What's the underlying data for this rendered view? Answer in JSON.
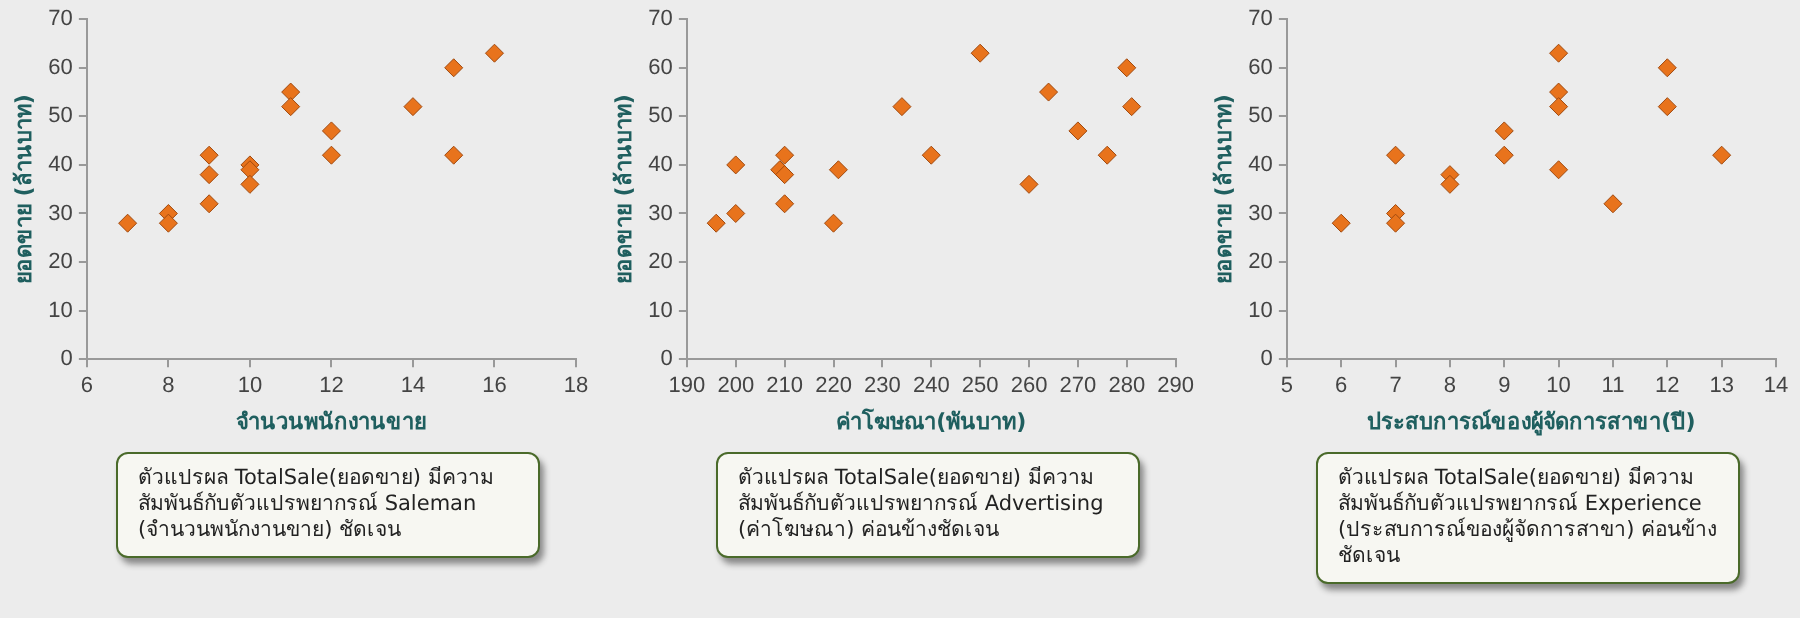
{
  "chart_data": [
    {
      "type": "scatter",
      "xlabel": "จำนวนพนักงานขาย",
      "ylabel": "ยอดขาย (ล้านบาท)",
      "marker": "diamond",
      "grid": false,
      "xlim": [
        6,
        18
      ],
      "xticks": [
        6,
        8,
        10,
        12,
        14,
        16,
        18
      ],
      "ylim": [
        0,
        70
      ],
      "yticks": [
        0,
        10,
        20,
        30,
        40,
        50,
        60,
        70
      ],
      "series": [
        {
          "color": "#e8731c",
          "x": [
            7,
            8,
            8,
            9,
            9,
            9,
            10,
            10,
            10,
            11,
            11,
            12,
            12,
            14,
            15,
            15,
            16
          ],
          "values": [
            28,
            30,
            28,
            42,
            38,
            32,
            40,
            39,
            36,
            55,
            52,
            47,
            42,
            52,
            60,
            42,
            63
          ]
        }
      ],
      "annotations": [
        "ตัวแปรผล TotalSale(ยอดขาย) มีความสัมพันธ์กับตัวแปรพยากรณ์ Saleman (จำนวนพนักงานขาย) ชัดเจน"
      ]
    },
    {
      "type": "scatter",
      "xlabel": "ค่าโฆษณา(พันบาท)",
      "ylabel": "ยอดขาย (ล้านบาท)",
      "marker": "diamond",
      "grid": false,
      "xlim": [
        190,
        290
      ],
      "xticks": [
        190,
        200,
        210,
        220,
        230,
        240,
        250,
        260,
        270,
        280,
        290
      ],
      "ylim": [
        0,
        70
      ],
      "yticks": [
        0,
        10,
        20,
        30,
        40,
        50,
        60,
        70
      ],
      "series": [
        {
          "color": "#e8731c",
          "x": [
            196,
            200,
            200,
            209,
            210,
            210,
            210,
            220,
            221,
            234,
            240,
            250,
            260,
            264,
            270,
            276,
            280,
            281
          ],
          "values": [
            28,
            40,
            30,
            39,
            42,
            38,
            32,
            28,
            39,
            52,
            42,
            63,
            36,
            55,
            47,
            42,
            60,
            52
          ]
        }
      ],
      "annotations": [
        "ตัวแปรผล TotalSale(ยอดขาย) มีความสัมพันธ์กับตัวแปรพยากรณ์ Advertising (ค่าโฆษณา) ค่อนข้างชัดเจน"
      ]
    },
    {
      "type": "scatter",
      "xlabel": "ประสบการณ์ของผู้จัดการสาขา(ปี)",
      "ylabel": "ยอดขาย (ล้านบาท)",
      "marker": "diamond",
      "grid": false,
      "xlim": [
        5,
        14
      ],
      "xticks": [
        5,
        6,
        7,
        8,
        9,
        10,
        11,
        12,
        13,
        14
      ],
      "ylim": [
        0,
        70
      ],
      "yticks": [
        0,
        10,
        20,
        30,
        40,
        50,
        60,
        70
      ],
      "series": [
        {
          "color": "#e8731c",
          "x": [
            6,
            7,
            7,
            7,
            8,
            8,
            9,
            9,
            10,
            10,
            10,
            10,
            11,
            12,
            12,
            13
          ],
          "values": [
            28,
            42,
            30,
            28,
            38,
            36,
            47,
            42,
            63,
            55,
            52,
            39,
            32,
            60,
            52,
            42
          ]
        }
      ],
      "annotations": [
        "ตัวแปรผล TotalSale(ยอดขาย) มีความสัมพันธ์กับตัวแปรพยากรณ์ Experience (ประสบการณ์ของผู้จัดการสาขา) ค่อนข้างชัดเจน"
      ]
    }
  ]
}
